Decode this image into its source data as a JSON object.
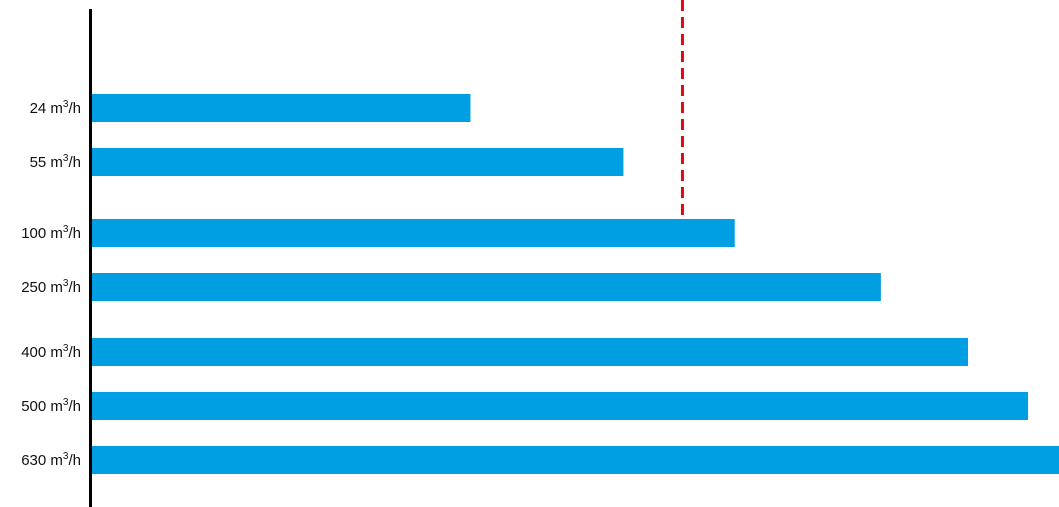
{
  "chart_data": {
    "type": "bar",
    "orientation": "horizontal",
    "title": "",
    "xlabel": "",
    "ylabel": "",
    "categories": [
      {
        "number": "24",
        "unit_base": "m",
        "unit_sup": "3",
        "unit_rest": "/h"
      },
      {
        "number": "55",
        "unit_base": "m",
        "unit_sup": "3",
        "unit_rest": "/h"
      },
      {
        "number": "100",
        "unit_base": "m",
        "unit_sup": "3",
        "unit_rest": "/h"
      },
      {
        "number": "250",
        "unit_base": "m",
        "unit_sup": "3",
        "unit_rest": "/h"
      },
      {
        "number": "400",
        "unit_base": "m",
        "unit_sup": "3",
        "unit_rest": "/h"
      },
      {
        "number": "500",
        "unit_base": "m",
        "unit_sup": "3",
        "unit_rest": "/h"
      },
      {
        "number": "630",
        "unit_base": "m",
        "unit_sup": "3",
        "unit_rest": "/h"
      }
    ],
    "values": [
      39.2,
      55.0,
      66.5,
      81.6,
      90.6,
      96.8,
      100.0
    ],
    "xlim": [
      0,
      100
    ],
    "reference_line": {
      "value": 61.1,
      "style": "dashed"
    },
    "grid": false,
    "legend": "none",
    "colors": {
      "bar": "#009FE3",
      "reference_line": "#E30613",
      "axis": "#000000"
    }
  }
}
